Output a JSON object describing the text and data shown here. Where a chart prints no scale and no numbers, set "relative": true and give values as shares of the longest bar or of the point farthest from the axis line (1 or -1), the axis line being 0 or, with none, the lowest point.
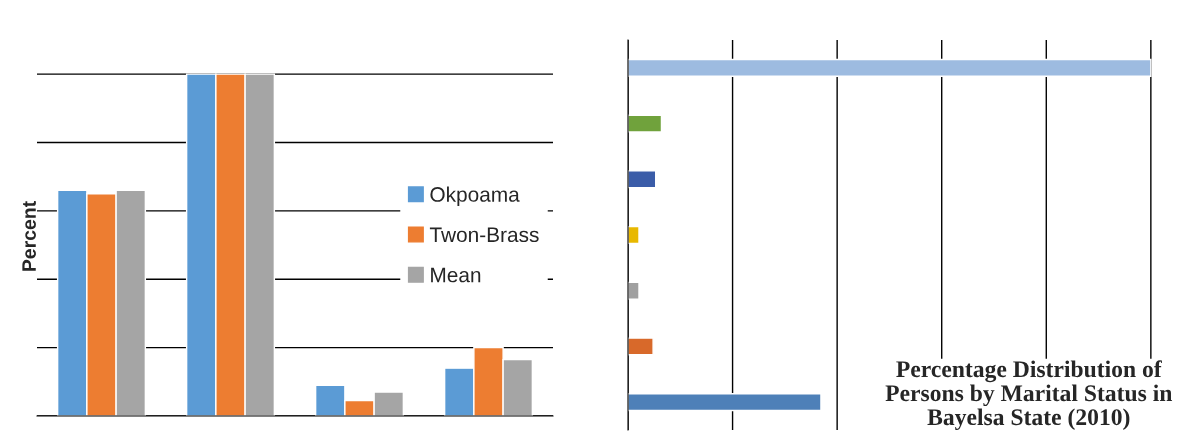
{
  "chart_data": [
    {
      "type": "bar",
      "relative": true,
      "ylabel": "Percent",
      "categories": [
        null,
        null,
        null,
        null
      ],
      "grid": "y",
      "legend": "right",
      "series": [
        {
          "name": "Okpoama",
          "color": "#5b9bd5",
          "values": [
            0.66,
            1,
            0.09,
            0.14
          ]
        },
        {
          "name": "Twon-Brass",
          "color": "#ed7d31",
          "values": [
            0.65,
            1,
            0.045,
            0.2
          ]
        },
        {
          "name": "Mean",
          "color": "#a5a5a5",
          "values": [
            0.66,
            1,
            0.07,
            0.165
          ]
        }
      ]
    },
    {
      "type": "bar",
      "orientation": "horizontal",
      "relative": true,
      "grid": "x",
      "title": "Percentage Distribution of\nPersons by Marital Status in\nBayelsa State (2010)",
      "categories": [
        null,
        null,
        null,
        null,
        null,
        null,
        null
      ],
      "values": [
        1,
        0.064,
        0.053,
        0.021,
        0.021,
        0.048,
        0.369
      ],
      "colors": [
        "#9dbbe0",
        "#70a23c",
        "#3a5ca8",
        "#e8b800",
        "#a0a0a0",
        "#d8692a",
        "#4e80b8"
      ]
    }
  ]
}
